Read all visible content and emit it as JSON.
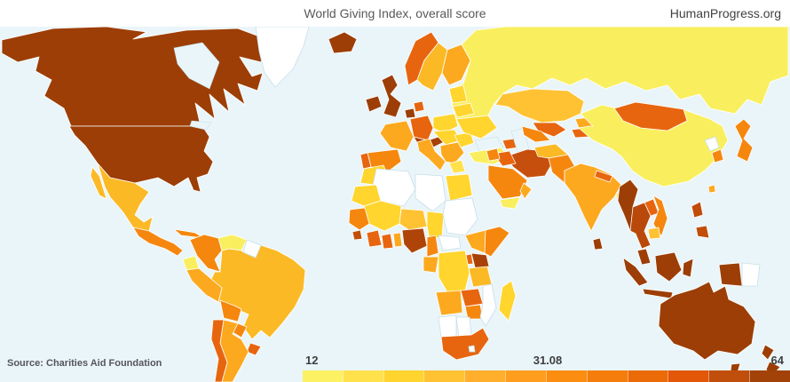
{
  "header": {
    "title": "World Giving Index, overall score",
    "site": "HumanProgress.org"
  },
  "footer": {
    "source": "Source: Charities Aid Foundation"
  },
  "legend": {
    "min_label": "12",
    "mid_label": "31.08",
    "max_label": "64",
    "min_value": 12,
    "mid_value": 31.08,
    "max_value": 64,
    "colors": [
      "#FCF162",
      "#FFE14C",
      "#FFD42E",
      "#FFC233",
      "#FFAF2B",
      "#FF9D1E",
      "#FB8D10",
      "#F57D0C",
      "#EC6B09",
      "#E25708",
      "#C14F0C",
      "#A34208"
    ]
  },
  "map": {
    "ocean_color": "#EAF5F9",
    "country_colors": {
      "usa": "#9C3E06",
      "canada": "#9C3E06",
      "greenland": "#FFFFFF",
      "iceland": "#9C3E06",
      "mexico": "#FBB925",
      "central_america": "#F5870E",
      "cuba": "#F5870E",
      "hispaniola": "#9C3E06",
      "colombia": "#F5870E",
      "venezuela": "#F9EF5E",
      "guyanas": "#FFFFFF",
      "ecuador": "#F9EF5E",
      "peru": "#FCA91F",
      "brazil": "#FBB925",
      "bolivia": "#F5870E",
      "paraguay": "#F5870E",
      "uruguay": "#E7650F",
      "argentina": "#FCA91F",
      "chile": "#E7650F",
      "ireland": "#9C3E06",
      "uk": "#9C3E06",
      "norway": "#E7650F",
      "sweden": "#FBB925",
      "finland": "#FCA91F",
      "baltics": "#FFD52E",
      "denmark": "#E7650F",
      "netherlands": "#9C3E06",
      "germany": "#E7650F",
      "france": "#FCA91F",
      "spain": "#F5870E",
      "portugal": "#E7650F",
      "italy": "#FCA91F",
      "alpine": "#A84108",
      "poland": "#FFD52E",
      "central_europe": "#FFD52E",
      "balkans": "#FCA91F",
      "greece": "#FFE14C",
      "romania": "#FFD52E",
      "ukraine": "#FFD52E",
      "belarus": "#FFD52E",
      "turkey": "#F9EF5E",
      "caucasus": "#E7650F",
      "russia": "#F9EF5E",
      "kazakhstan": "#FFC233",
      "uzbekistan": "#E7650F",
      "turkmenistan": "#F5870E",
      "kyrgyzstan": "#FCA91F",
      "tajikistan": "#E7650F",
      "china": "#F9EF5E",
      "mongolia": "#E7650F",
      "taiwan": "#FCA91F",
      "north_korea": "#FFFFFF",
      "south_korea": "#F5870E",
      "japan": "#F5870E",
      "india": "#FCA91F",
      "pakistan": "#F5870E",
      "afghanistan": "#FBB925",
      "nepal": "#E7650F",
      "bangladesh": "#FFE14C",
      "sri_lanka": "#9C3E06",
      "iran": "#C64F0D",
      "iraq": "#E7650F",
      "levant": "#F5870E",
      "saudi_arabia": "#F5870E",
      "yemen": "#F9EF5E",
      "oman": "#FCA91F",
      "myanmar": "#9C3E06",
      "thailand": "#B8490B",
      "laos": "#E7650F",
      "vietnam": "#F5870E",
      "cambodia": "#FFC233",
      "malaysia": "#9C3E06",
      "indonesia": "#9C3E06",
      "papua_new_guinea": "#FFFFFF",
      "philippines": "#C14E08",
      "morocco": "#FFD52E",
      "mauritania": "#FFD52E",
      "algeria": "#FFFFFF",
      "libya": "#FFFFFF",
      "egypt": "#FFD52E",
      "mali": "#FFD52E",
      "niger": "#FFC233",
      "chad": "#FFD52E",
      "sudan": "#FFFFFF",
      "ethiopia": "#FCA91F",
      "somalia": "#F5870E",
      "kenya": "#A84108",
      "uganda": "#E7650F",
      "tanzania": "#FBB925",
      "senegal": "#F5870E",
      "sierra_leone": "#C14E08",
      "ivory_coast": "#E7650F",
      "ghana": "#E7650F",
      "togo_benin": "#FCA91F",
      "nigeria": "#AF4408",
      "cameroon": "#F5870E",
      "central_african_republic": "#FFFFFF",
      "gabon_congo": "#FCA91F",
      "dr_congo": "#FFD52E",
      "angola": "#FCA91F",
      "zambia": "#E7650F",
      "zimbabwe": "#F5870E",
      "mozambique": "#FFFFFF",
      "namibia": "#FFFFFF",
      "botswana": "#FFFFFF",
      "south_africa": "#E7650F",
      "lesotho": "#FFFFFF",
      "madagascar": "#FFD52E",
      "australia": "#9C3E06",
      "new_zealand": "#9C3E06"
    }
  }
}
